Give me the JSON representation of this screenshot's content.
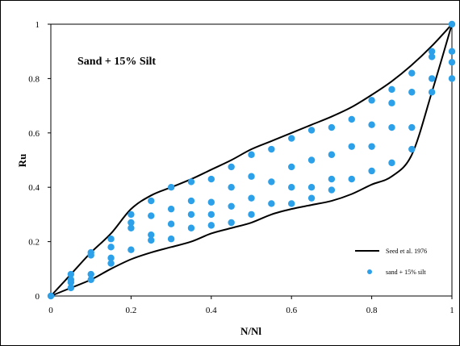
{
  "chart_data": {
    "type": "scatter",
    "annotation": "Sand + 15% Silt",
    "xlabel": "N/Nl",
    "ylabel": "Ru",
    "xlim": [
      0,
      1
    ],
    "ylim": [
      0,
      1
    ],
    "x_ticks": [
      "0",
      "0.2",
      "0.4",
      "0.6",
      "0.8",
      "1"
    ],
    "y_ticks": [
      "0",
      "0.2",
      "0.4",
      "0.6",
      "0.8",
      "1"
    ],
    "grid": false,
    "legend_position": "bottom-right",
    "colors": {
      "points": "#2ca0e8",
      "bounds": "#000000"
    },
    "series": [
      {
        "name": "Seed et al. 1976",
        "kind": "line",
        "upper": [
          [
            0,
            0
          ],
          [
            0.05,
            0.08
          ],
          [
            0.1,
            0.16
          ],
          [
            0.15,
            0.23
          ],
          [
            0.2,
            0.32
          ],
          [
            0.25,
            0.37
          ],
          [
            0.3,
            0.4
          ],
          [
            0.35,
            0.43
          ],
          [
            0.4,
            0.465
          ],
          [
            0.45,
            0.5
          ],
          [
            0.5,
            0.54
          ],
          [
            0.55,
            0.57
          ],
          [
            0.6,
            0.6
          ],
          [
            0.65,
            0.63
          ],
          [
            0.7,
            0.66
          ],
          [
            0.75,
            0.695
          ],
          [
            0.8,
            0.74
          ],
          [
            0.85,
            0.79
          ],
          [
            0.9,
            0.85
          ],
          [
            0.95,
            0.92
          ],
          [
            1,
            1
          ]
        ],
        "lower": [
          [
            0,
            0
          ],
          [
            0.05,
            0.03
          ],
          [
            0.1,
            0.06
          ],
          [
            0.15,
            0.1
          ],
          [
            0.2,
            0.135
          ],
          [
            0.25,
            0.16
          ],
          [
            0.3,
            0.18
          ],
          [
            0.35,
            0.2
          ],
          [
            0.4,
            0.23
          ],
          [
            0.45,
            0.25
          ],
          [
            0.5,
            0.27
          ],
          [
            0.55,
            0.3
          ],
          [
            0.6,
            0.32
          ],
          [
            0.65,
            0.335
          ],
          [
            0.7,
            0.35
          ],
          [
            0.75,
            0.375
          ],
          [
            0.8,
            0.41
          ],
          [
            0.85,
            0.44
          ],
          [
            0.9,
            0.52
          ],
          [
            0.95,
            0.75
          ],
          [
            1,
            1
          ]
        ]
      },
      {
        "name": "sand + 15% silt",
        "kind": "points",
        "points": [
          [
            0,
            0
          ],
          [
            0.05,
            0.08
          ],
          [
            0.05,
            0.06
          ],
          [
            0.05,
            0.05
          ],
          [
            0.05,
            0.03
          ],
          [
            0.1,
            0.16
          ],
          [
            0.1,
            0.15
          ],
          [
            0.1,
            0.08
          ],
          [
            0.1,
            0.06
          ],
          [
            0.15,
            0.21
          ],
          [
            0.15,
            0.18
          ],
          [
            0.15,
            0.14
          ],
          [
            0.15,
            0.12
          ],
          [
            0.2,
            0.3
          ],
          [
            0.2,
            0.27
          ],
          [
            0.2,
            0.25
          ],
          [
            0.2,
            0.17
          ],
          [
            0.25,
            0.35
          ],
          [
            0.25,
            0.295
          ],
          [
            0.25,
            0.225
          ],
          [
            0.25,
            0.205
          ],
          [
            0.3,
            0.4
          ],
          [
            0.3,
            0.32
          ],
          [
            0.3,
            0.265
          ],
          [
            0.3,
            0.21
          ],
          [
            0.35,
            0.42
          ],
          [
            0.35,
            0.35
          ],
          [
            0.35,
            0.3
          ],
          [
            0.35,
            0.25
          ],
          [
            0.4,
            0.43
          ],
          [
            0.4,
            0.345
          ],
          [
            0.4,
            0.3
          ],
          [
            0.4,
            0.26
          ],
          [
            0.45,
            0.475
          ],
          [
            0.45,
            0.4
          ],
          [
            0.45,
            0.33
          ],
          [
            0.45,
            0.27
          ],
          [
            0.5,
            0.52
          ],
          [
            0.5,
            0.44
          ],
          [
            0.5,
            0.36
          ],
          [
            0.5,
            0.3
          ],
          [
            0.55,
            0.54
          ],
          [
            0.55,
            0.42
          ],
          [
            0.55,
            0.34
          ],
          [
            0.6,
            0.58
          ],
          [
            0.6,
            0.475
          ],
          [
            0.6,
            0.4
          ],
          [
            0.6,
            0.34
          ],
          [
            0.65,
            0.61
          ],
          [
            0.65,
            0.5
          ],
          [
            0.65,
            0.4
          ],
          [
            0.65,
            0.36
          ],
          [
            0.7,
            0.62
          ],
          [
            0.7,
            0.52
          ],
          [
            0.7,
            0.43
          ],
          [
            0.7,
            0.39
          ],
          [
            0.75,
            0.65
          ],
          [
            0.75,
            0.55
          ],
          [
            0.75,
            0.43
          ],
          [
            0.8,
            0.72
          ],
          [
            0.8,
            0.63
          ],
          [
            0.8,
            0.55
          ],
          [
            0.8,
            0.46
          ],
          [
            0.85,
            0.76
          ],
          [
            0.85,
            0.71
          ],
          [
            0.85,
            0.62
          ],
          [
            0.85,
            0.49
          ],
          [
            0.9,
            0.82
          ],
          [
            0.9,
            0.75
          ],
          [
            0.9,
            0.62
          ],
          [
            0.9,
            0.54
          ],
          [
            0.95,
            0.9
          ],
          [
            0.95,
            0.88
          ],
          [
            0.95,
            0.8
          ],
          [
            0.95,
            0.75
          ],
          [
            1,
            1
          ],
          [
            1,
            0.9
          ],
          [
            1,
            0.86
          ],
          [
            1,
            0.8
          ]
        ]
      }
    ]
  }
}
